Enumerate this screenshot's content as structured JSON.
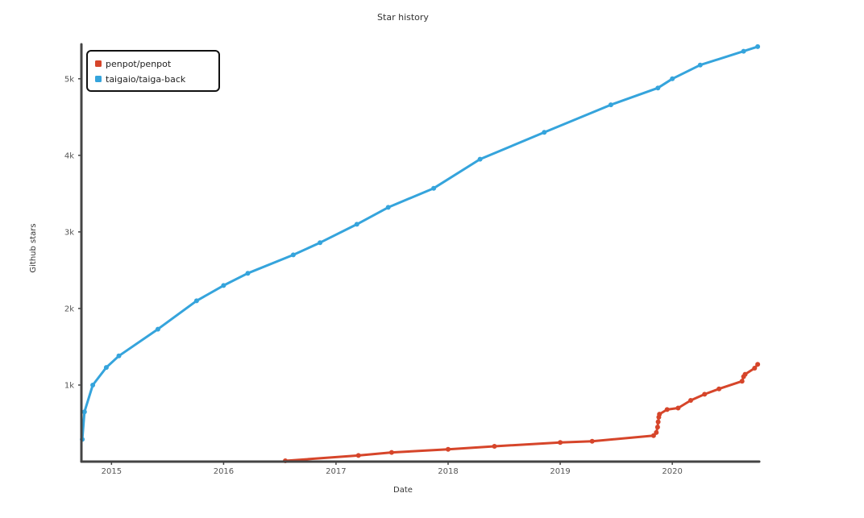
{
  "chart_data": {
    "type": "line",
    "title": "Star history",
    "xlabel": "Date",
    "ylabel": "Github stars",
    "x_axis": {
      "type": "time",
      "range": [
        "2014-09-25",
        "2020-10-10"
      ],
      "ticks": [
        "2015-01-01",
        "2016-01-01",
        "2017-01-01",
        "2018-01-01",
        "2019-01-01",
        "2020-01-01"
      ],
      "tick_labels": [
        "2015",
        "2016",
        "2017",
        "2018",
        "2019",
        "2020"
      ]
    },
    "y_axis": {
      "range": [
        0,
        5450
      ],
      "ticks": [
        1000,
        2000,
        3000,
        4000,
        5000
      ],
      "tick_labels": [
        "1k",
        "2k",
        "3k",
        "4k",
        "5k"
      ]
    },
    "grid": false,
    "legend_position": "top-left",
    "series": [
      {
        "name": "penpot/penpot",
        "color": "#d6452a",
        "points": [
          [
            "2016-07-20",
            10
          ],
          [
            "2017-03-15",
            80
          ],
          [
            "2017-07-01",
            120
          ],
          [
            "2018-01-01",
            160
          ],
          [
            "2018-06-01",
            200
          ],
          [
            "2019-01-01",
            250
          ],
          [
            "2019-04-15",
            265
          ],
          [
            "2019-11-01",
            340
          ],
          [
            "2019-11-10",
            380
          ],
          [
            "2019-11-14",
            450
          ],
          [
            "2019-11-16",
            520
          ],
          [
            "2019-11-18",
            580
          ],
          [
            "2019-11-20",
            620
          ],
          [
            "2019-12-15",
            680
          ],
          [
            "2020-01-20",
            700
          ],
          [
            "2020-03-01",
            800
          ],
          [
            "2020-04-15",
            880
          ],
          [
            "2020-06-01",
            950
          ],
          [
            "2020-08-15",
            1050
          ],
          [
            "2020-08-20",
            1110
          ],
          [
            "2020-08-25",
            1140
          ],
          [
            "2020-09-25",
            1220
          ],
          [
            "2020-10-05",
            1270
          ]
        ]
      },
      {
        "name": "taigaio/taiga-back",
        "color": "#35a4dc",
        "points": [
          [
            "2014-09-28",
            290
          ],
          [
            "2014-10-05",
            650
          ],
          [
            "2014-11-01",
            1000
          ],
          [
            "2014-12-15",
            1230
          ],
          [
            "2015-01-25",
            1380
          ],
          [
            "2015-06-01",
            1730
          ],
          [
            "2015-10-05",
            2100
          ],
          [
            "2016-01-01",
            2300
          ],
          [
            "2016-03-20",
            2460
          ],
          [
            "2016-08-15",
            2700
          ],
          [
            "2016-11-10",
            2860
          ],
          [
            "2017-03-10",
            3100
          ],
          [
            "2017-06-20",
            3320
          ],
          [
            "2017-11-15",
            3570
          ],
          [
            "2018-04-15",
            3950
          ],
          [
            "2018-11-10",
            4300
          ],
          [
            "2019-06-15",
            4660
          ],
          [
            "2019-11-15",
            4880
          ],
          [
            "2020-01-01",
            5000
          ],
          [
            "2020-04-01",
            5180
          ],
          [
            "2020-08-20",
            5360
          ],
          [
            "2020-10-05",
            5420
          ]
        ]
      }
    ]
  }
}
